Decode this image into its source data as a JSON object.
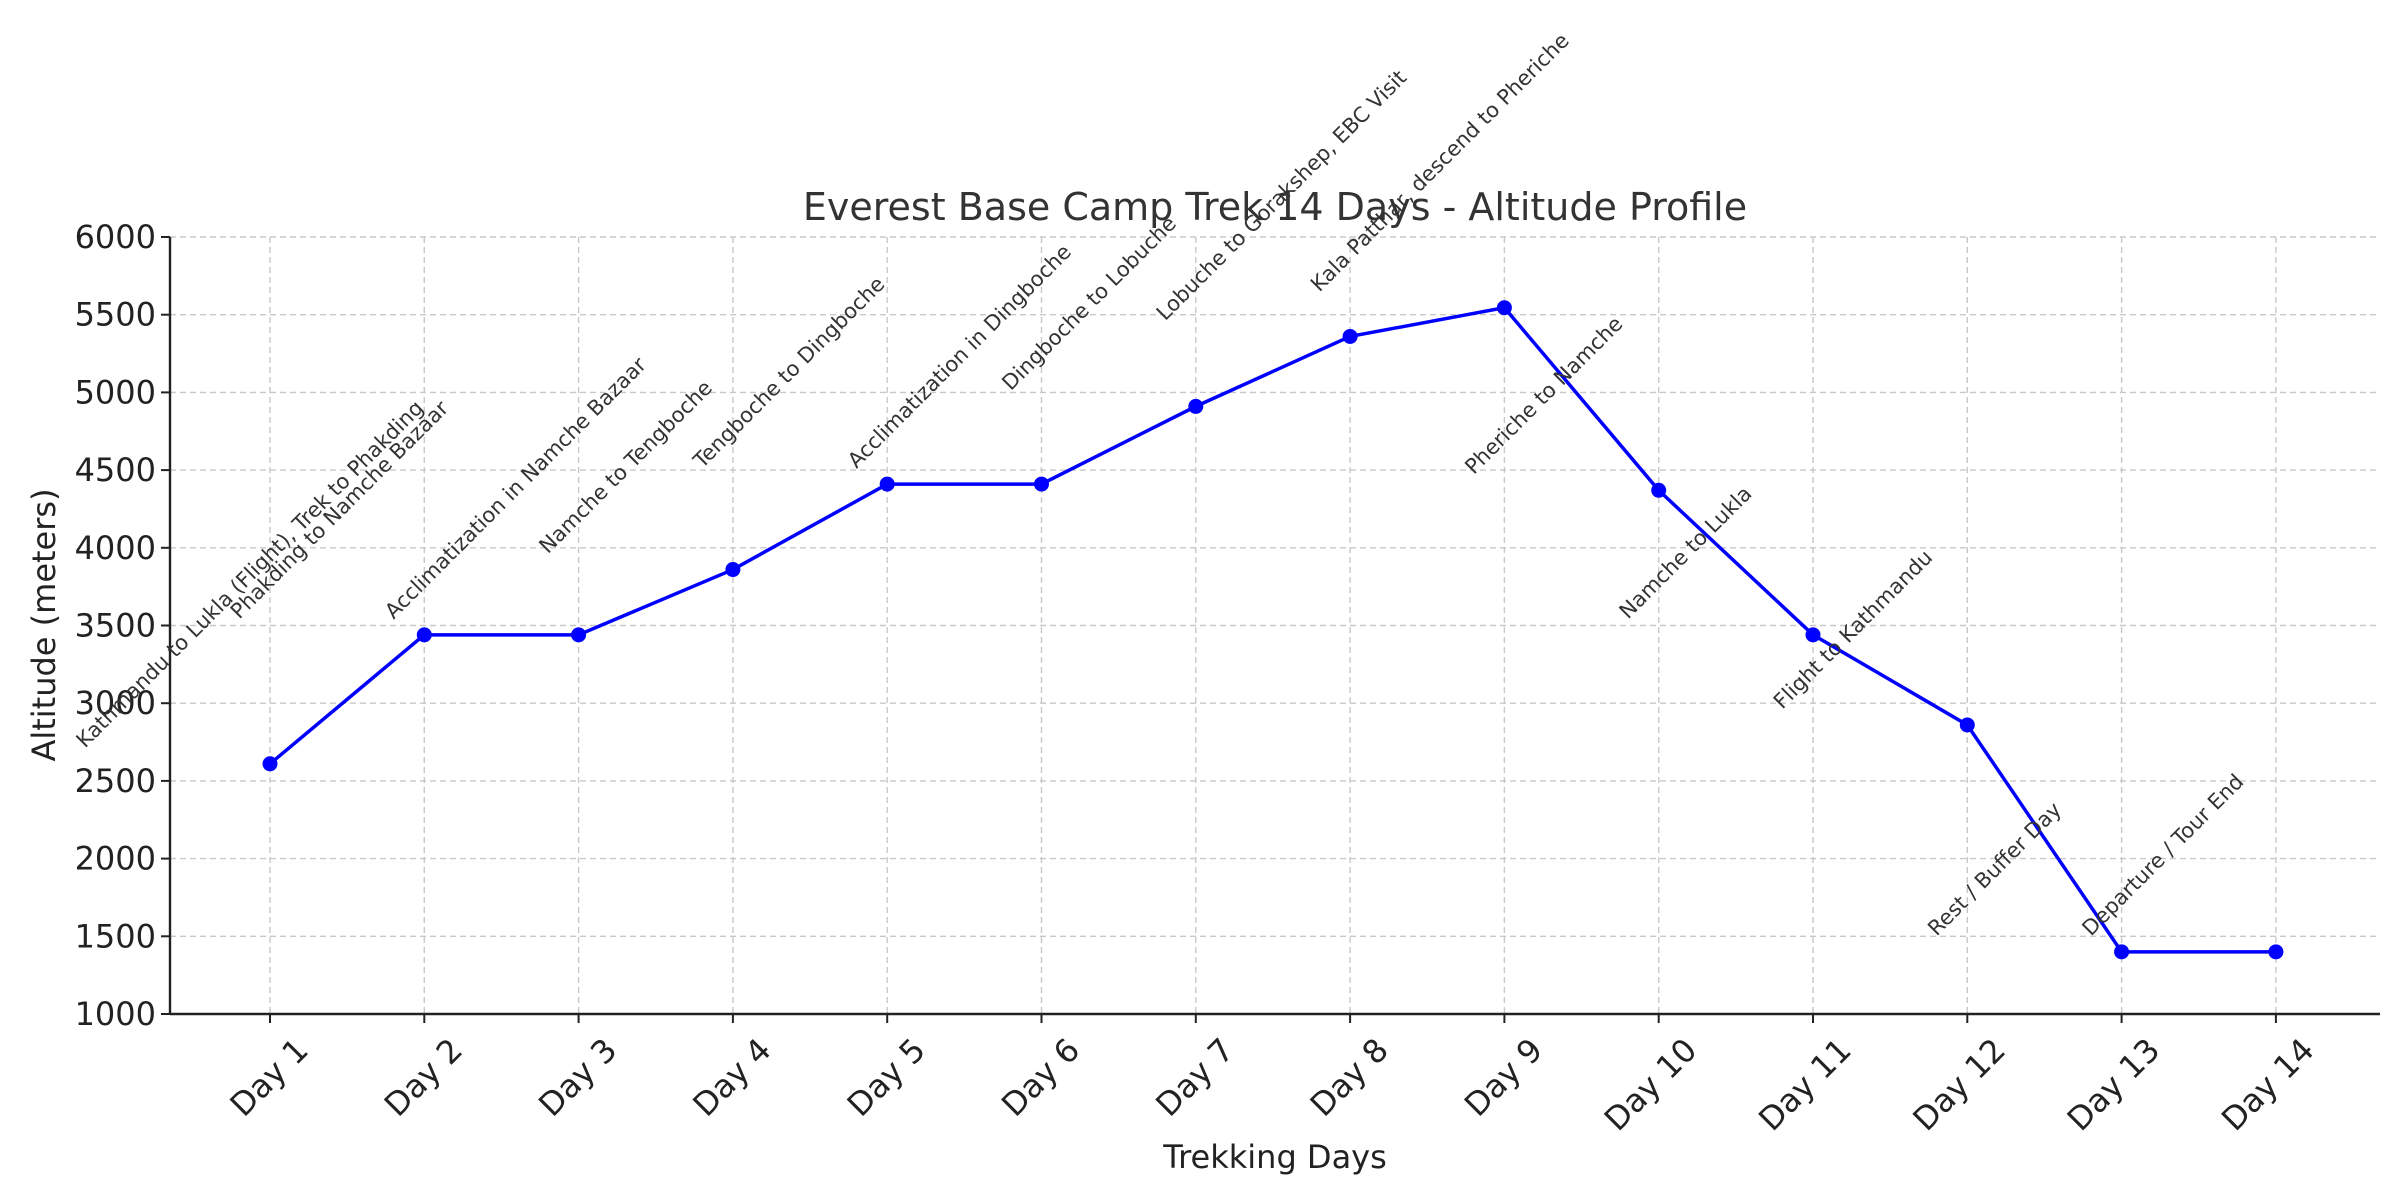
{
  "chart_data": {
    "type": "line",
    "title": "Everest Base Camp Trek 14 Days - Altitude Profile",
    "xlabel": "Trekking Days",
    "ylabel": "Altitude (meters)",
    "ylim": [
      1000,
      6000
    ],
    "yticks": [
      "1000",
      "1500",
      "2000",
      "2500",
      "3000",
      "3500",
      "4000",
      "4500",
      "5000",
      "5500",
      "6000"
    ],
    "grid": true,
    "colors": {
      "line": "#0000ff"
    },
    "categories": [
      "Day 1",
      "Day 2",
      "Day 3",
      "Day 4",
      "Day 5",
      "Day 6",
      "Day 7",
      "Day 8",
      "Day 9",
      "Day 10",
      "Day 11",
      "Day 12",
      "Day 13",
      "Day 14"
    ],
    "values": [
      2610,
      3440,
      3440,
      3860,
      4410,
      4410,
      4910,
      5360,
      5545,
      4370,
      3440,
      2860,
      1400,
      1400
    ],
    "annotations": [
      "Kathmandu to Lukla (Flight), Trek to Phakding",
      "Phakding to Namche Bazaar",
      "Acclimatization in Namche Bazaar",
      "Namche to Tengboche",
      "Tengboche to Dingboche",
      "Acclimatization in Dingboche",
      "Dingboche to Lobuche",
      "Lobuche to Gorakshep, EBC Visit",
      "Kala Patthar, descend to Pheriche",
      "Pheriche to Namche",
      "Namche to Lukla",
      "Flight to Kathmandu",
      "Rest / Buffer Day",
      "Departure / Tour End"
    ]
  }
}
